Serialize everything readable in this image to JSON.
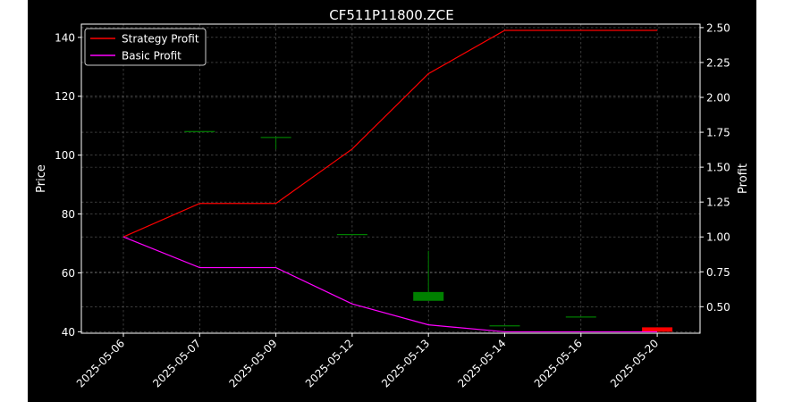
{
  "chart_data": {
    "type": "line",
    "title": "CF511P11800.ZCE",
    "xlabel": "",
    "ylabel_left": "Price",
    "ylabel_right": "Profit",
    "categories": [
      "2025-05-06",
      "2025-05-07",
      "2025-05-09",
      "2025-05-12",
      "2025-05-13",
      "2025-05-14",
      "2025-05-16",
      "2025-05-20"
    ],
    "ylim_left": [
      39.5,
      144.5
    ],
    "ylim_right": [
      0.31,
      2.525
    ],
    "yticks_left": [
      40,
      60,
      80,
      100,
      120,
      140
    ],
    "yticks_right": [
      0.5,
      0.75,
      1.0,
      1.25,
      1.5,
      1.75,
      2.0,
      2.25,
      2.5
    ],
    "yticks_right_labels": [
      "0.50",
      "0.75",
      "1.00",
      "1.25",
      "1.50",
      "1.75",
      "2.00",
      "2.25",
      "2.50"
    ],
    "grid": true,
    "legend_position": "top-left",
    "background": "#000000",
    "candles": [
      {
        "date": "2025-05-06",
        "open": 142.0,
        "close": 142.0,
        "high": 142.0,
        "low": 142.0
      },
      {
        "date": "2025-05-07",
        "open": 108.0,
        "close": 108.0,
        "high": 108.0,
        "low": 108.0
      },
      {
        "date": "2025-05-09",
        "open": 106.0,
        "close": 106.0,
        "high": 106.0,
        "low": 102.0
      },
      {
        "date": "2025-05-12",
        "open": 73.0,
        "close": 73.0,
        "high": 73.0,
        "low": 73.0
      },
      {
        "date": "2025-05-13",
        "open": 50.5,
        "close": 53.5,
        "high": 67.5,
        "low": 50.5
      },
      {
        "date": "2025-05-14",
        "open": 42.0,
        "close": 42.0,
        "high": 42.0,
        "low": 42.0
      },
      {
        "date": "2025-05-16",
        "open": 45.0,
        "close": 45.0,
        "high": 45.0,
        "low": 45.0
      },
      {
        "date": "2025-05-20",
        "open": 41.5,
        "close": 40.0,
        "high": 41.5,
        "low": 40.0
      }
    ],
    "series": [
      {
        "name": "Strategy Profit",
        "axis": "right",
        "color": "#ff0000",
        "values": [
          1.0,
          1.24,
          1.24,
          1.63,
          2.17,
          2.48,
          2.48,
          2.48
        ]
      },
      {
        "name": "Basic Profit",
        "axis": "right",
        "color": "#ff00ff",
        "values": [
          1.0,
          0.78,
          0.78,
          0.52,
          0.37,
          0.32,
          0.32,
          0.32
        ]
      }
    ],
    "colors": {
      "up": "#008000",
      "down": "#ff0000",
      "grid": "#b0b0b0",
      "legend_edge": "#cccccc"
    }
  }
}
